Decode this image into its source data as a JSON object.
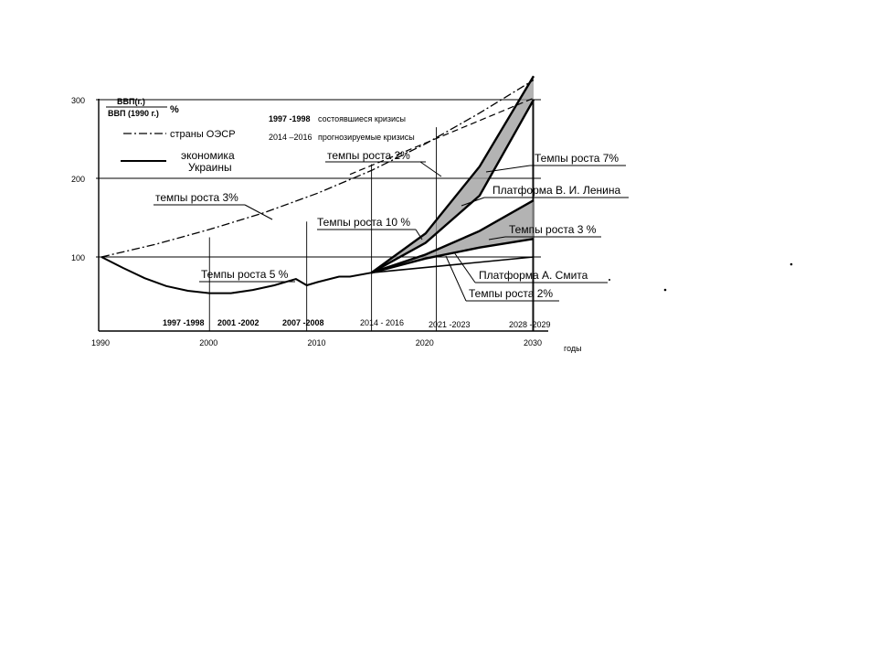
{
  "chart_data": {
    "type": "line",
    "ylabel_top": "ВВП(г.)",
    "ylabel_bottom": "ВВП (1990 г.)",
    "ylabel_unit": "%",
    "xlabel": "годы",
    "x_ticks": [
      "1990",
      "2000",
      "2010",
      "2020",
      "2030"
    ],
    "y_ticks": [
      "100",
      "200",
      "300"
    ],
    "xlim": [
      1990,
      2030
    ],
    "ylim": [
      0,
      300
    ],
    "legend": {
      "crisis_past": "1997 -1998",
      "crisis_past_label": "состоявшиеся кризисы",
      "crisis_future": "2014 –2016",
      "crisis_future_label": "прогнозируемые кризисы",
      "oecd": "страны ОЭСР",
      "ukraine_line1": "экономика",
      "ukraine_line2": "Украины"
    },
    "series": [
      {
        "name": "страны ОЭСР",
        "style": "dash-dot",
        "x": [
          1990,
          1995,
          2000,
          2005,
          2010,
          2015,
          2020,
          2025,
          2030
        ],
        "y": [
          100,
          116,
          135,
          156,
          181,
          210,
          244,
          283,
          325
        ]
      },
      {
        "name": "экономика Украины",
        "style": "solid",
        "x": [
          1990,
          1992,
          1994,
          1996,
          1998,
          2000,
          2002,
          2004,
          2006,
          2008,
          2009,
          2010,
          2012,
          2013,
          2015
        ],
        "y": [
          100,
          86,
          73,
          63,
          57,
          54,
          54,
          58,
          64,
          72,
          64,
          68,
          75,
          75,
          80
        ]
      }
    ],
    "projections": [
      {
        "x": [
          2015,
          2020,
          2025,
          2030
        ],
        "y": [
          80,
          130,
          215,
          330
        ]
      },
      {
        "x": [
          2015,
          2020,
          2025,
          2030
        ],
        "y": [
          80,
          118,
          178,
          300
        ]
      },
      {
        "x": [
          2015,
          2020,
          2025,
          2030
        ],
        "y": [
          80,
          103,
          133,
          172
        ]
      },
      {
        "x": [
          2015,
          2020,
          2025,
          2030
        ],
        "y": [
          80,
          98,
          112,
          123
        ]
      },
      {
        "x": [
          2015,
          2030
        ],
        "y": [
          80,
          100
        ]
      }
    ],
    "crisis_labels": [
      "1997 -1998",
      "2001 -2002",
      "2007 -2008",
      "2014 - 2016",
      "2021 -2023",
      "2028 -2029"
    ],
    "annotations": {
      "growth_3": "темпы роста 3%",
      "growth_2_top": "темпы роста  2%",
      "growth_10": "Темпы роста 10 %",
      "growth_5": "Темпы роста 5 %",
      "growth_7": "Темпы роста  7%",
      "lenin": "Платформа В. И. Ленина",
      "growth_3b": "Темпы роста 3 %",
      "smith": "Платформа А. Смита",
      "growth_2_bottom": "Темпы роста 2%"
    }
  }
}
